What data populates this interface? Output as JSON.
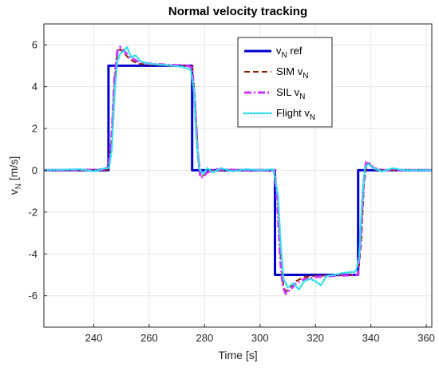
{
  "chart_data": {
    "type": "line",
    "title": "Normal velocity tracking",
    "xlabel": "Time [s]",
    "ylabel": "v_N [m/s]",
    "ylabel_main": "v",
    "ylabel_sub": "N",
    "ylabel_units": " [m/s]",
    "xlim": [
      222,
      362
    ],
    "ylim": [
      -7.5,
      7
    ],
    "xticks": [
      240,
      260,
      280,
      300,
      320,
      340,
      360
    ],
    "yticks": [
      -6,
      -4,
      -2,
      0,
      2,
      4,
      6
    ],
    "grid": true,
    "legend_position": "top-right",
    "series": [
      {
        "name": "v_N ref",
        "label_main": "v",
        "label_sub": "N",
        "label_suffix": " ref",
        "color": "#0000cc",
        "style": "solid",
        "points": [
          [
            222,
            0
          ],
          [
            245.3,
            0
          ],
          [
            245.3,
            5
          ],
          [
            275.5,
            5
          ],
          [
            275.5,
            0
          ],
          [
            305.4,
            0
          ],
          [
            305.4,
            -5
          ],
          [
            335.4,
            -5
          ],
          [
            335.4,
            0
          ],
          [
            362,
            0
          ]
        ]
      },
      {
        "name": "SIM v_N",
        "label_main": "SIM v",
        "label_sub": "N",
        "label_suffix": "",
        "color": "#8b2500",
        "style": "dashed",
        "points": [
          [
            222,
            0
          ],
          [
            245,
            0
          ],
          [
            246.5,
            1.5
          ],
          [
            247.5,
            4.2
          ],
          [
            248.5,
            5.6
          ],
          [
            249.5,
            5.8
          ],
          [
            251,
            5.6
          ],
          [
            253,
            5.3
          ],
          [
            256,
            5.1
          ],
          [
            260,
            5.05
          ],
          [
            270,
            5
          ],
          [
            275.5,
            5
          ],
          [
            276.5,
            3.5
          ],
          [
            277.5,
            1
          ],
          [
            278.5,
            -0.3
          ],
          [
            279.5,
            -0.25
          ],
          [
            281,
            -0.05
          ],
          [
            285,
            0
          ],
          [
            305.3,
            0
          ],
          [
            306.5,
            -1.5
          ],
          [
            307.5,
            -4.2
          ],
          [
            308.5,
            -5.6
          ],
          [
            309.5,
            -5.8
          ],
          [
            311,
            -5.6
          ],
          [
            313,
            -5.3
          ],
          [
            316,
            -5.1
          ],
          [
            320,
            -5.05
          ],
          [
            330,
            -5
          ],
          [
            335.4,
            -5
          ],
          [
            336.5,
            -3.5
          ],
          [
            337.5,
            -0.8
          ],
          [
            338.5,
            0.35
          ],
          [
            339.5,
            0.3
          ],
          [
            341,
            0.05
          ],
          [
            345,
            0
          ],
          [
            362,
            0
          ]
        ]
      },
      {
        "name": "SIL v_N",
        "label_main": "SIL v",
        "label_sub": "N",
        "label_suffix": "",
        "color": "#cc33ff",
        "style": "dashdot",
        "points": [
          [
            222,
            0
          ],
          [
            240,
            0.02
          ],
          [
            244.5,
            0.05
          ],
          [
            245.5,
            0.3
          ],
          [
            246.5,
            1.8
          ],
          [
            247.5,
            4.4
          ],
          [
            248.5,
            5.7
          ],
          [
            249.5,
            5.9
          ],
          [
            251,
            5.7
          ],
          [
            253,
            5.4
          ],
          [
            256,
            5.2
          ],
          [
            260,
            5.1
          ],
          [
            266,
            5.05
          ],
          [
            274,
            5
          ],
          [
            275.5,
            4.9
          ],
          [
            276.5,
            3.2
          ],
          [
            277.5,
            0.8
          ],
          [
            278.5,
            -0.35
          ],
          [
            279.5,
            -0.3
          ],
          [
            281,
            -0.1
          ],
          [
            284,
            0.05
          ],
          [
            290,
            0.02
          ],
          [
            305.2,
            0
          ],
          [
            306.3,
            -1.6
          ],
          [
            307.3,
            -4.3
          ],
          [
            308.3,
            -5.6
          ],
          [
            309.3,
            -5.9
          ],
          [
            311,
            -5.7
          ],
          [
            313,
            -5.4
          ],
          [
            316,
            -5.2
          ],
          [
            320,
            -5.1
          ],
          [
            326,
            -5.05
          ],
          [
            335.3,
            -5
          ],
          [
            336.3,
            -3.3
          ],
          [
            337.3,
            -0.7
          ],
          [
            338.3,
            0.4
          ],
          [
            339.3,
            0.35
          ],
          [
            341,
            0.1
          ],
          [
            345,
            0
          ],
          [
            362,
            0
          ]
        ]
      },
      {
        "name": "Flight v_N",
        "label_main": "Flight v",
        "label_sub": "N",
        "label_suffix": "",
        "color": "#33ddee",
        "style": "dotted",
        "points": [
          [
            222,
            0
          ],
          [
            235,
            0.05
          ],
          [
            240,
            -0.05
          ],
          [
            244,
            0.1
          ],
          [
            245.5,
            0.1
          ],
          [
            246.5,
            1
          ],
          [
            247.5,
            3.6
          ],
          [
            248.5,
            5.2
          ],
          [
            249.5,
            5.6
          ],
          [
            251,
            5.7
          ],
          [
            252,
            5.9
          ],
          [
            253.5,
            5.4
          ],
          [
            255,
            5.5
          ],
          [
            257,
            5.2
          ],
          [
            260,
            5.1
          ],
          [
            264,
            5.05
          ],
          [
            268,
            5
          ],
          [
            272,
            4.95
          ],
          [
            275,
            4.8
          ],
          [
            276.2,
            3.8
          ],
          [
            277,
            1.6
          ],
          [
            278,
            0.1
          ],
          [
            279.5,
            -0.2
          ],
          [
            281,
            0.1
          ],
          [
            283,
            -0.1
          ],
          [
            286,
            0.1
          ],
          [
            290,
            -0.05
          ],
          [
            295,
            0.05
          ],
          [
            300,
            0
          ],
          [
            304.8,
            0.05
          ],
          [
            306.5,
            -1.2
          ],
          [
            307.5,
            -3.6
          ],
          [
            308.5,
            -5.2
          ],
          [
            310,
            -5.6
          ],
          [
            312,
            -5.4
          ],
          [
            314,
            -5.7
          ],
          [
            316,
            -5.3
          ],
          [
            318,
            -5.2
          ],
          [
            320,
            -5.3
          ],
          [
            322,
            -5.5
          ],
          [
            324,
            -5.05
          ],
          [
            327,
            -5
          ],
          [
            330,
            -4.9
          ],
          [
            334.5,
            -4.85
          ],
          [
            335.8,
            -4.2
          ],
          [
            336.8,
            -1.6
          ],
          [
            337.8,
            0.1
          ],
          [
            339,
            0.3
          ],
          [
            341,
            0.1
          ],
          [
            344,
            -0.05
          ],
          [
            348,
            0.1
          ],
          [
            352,
            0
          ],
          [
            362,
            0
          ]
        ]
      }
    ]
  }
}
